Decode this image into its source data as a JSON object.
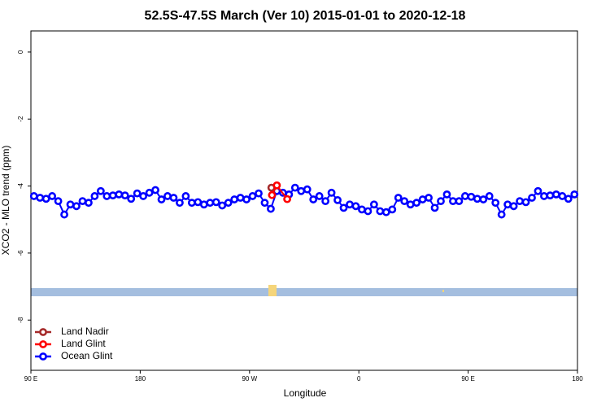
{
  "chart_data": {
    "type": "line",
    "title": "52.5S-47.5S March (Ver 10)   2015-01-01 to 2020-12-18",
    "xlabel": "Longitude",
    "ylabel": "XCO2 - MLO trend (ppm)",
    "xlim": [
      90,
      540
    ],
    "ylim": [
      -9.5,
      0.63
    ],
    "xticks": [
      {
        "value": 90,
        "label": "90 E"
      },
      180,
      {
        "value": 270,
        "label": "90 W"
      },
      {
        "value": 360,
        "label": "0"
      },
      {
        "value": 450,
        "label": "90 E"
      },
      {
        "value": 540,
        "label": "180"
      }
    ],
    "yticks": [
      0,
      -2,
      -4,
      -6,
      -8
    ],
    "legend": "bottom-left",
    "series": [
      {
        "name": "Land Nadir",
        "color": "#a52a2a",
        "x": [
          288
        ],
        "values": [
          -4.05
        ]
      },
      {
        "name": "Land Glint",
        "color": "#ff0000",
        "x": [
          288.5,
          292.5,
          301
        ],
        "values": [
          -4.27,
          -3.98,
          -4.39
        ]
      },
      {
        "name": "Ocean Glint",
        "color": "#0000ff",
        "x": [
          92.5,
          97.5,
          102.5,
          107.5,
          112.5,
          117.5,
          122.5,
          127.5,
          132.5,
          137.5,
          142.5,
          147.5,
          152.5,
          157.5,
          162.5,
          167.5,
          172.5,
          177.5,
          182.5,
          187.5,
          192.5,
          197.5,
          202.5,
          207.5,
          212.5,
          217.5,
          222.5,
          227.5,
          232.5,
          237.5,
          242.5,
          247.5,
          252.5,
          257.5,
          262.5,
          267.5,
          272.5,
          277.5,
          282.5,
          287.5,
          292.5,
          297.5,
          302.5,
          307.5,
          312.5,
          317.5,
          322.5,
          327.5,
          332.5,
          337.5,
          342.5,
          347.5,
          352.5,
          357.5,
          362.5,
          367.5,
          372.5,
          377.5,
          382.5,
          387.5,
          392.5,
          397.5,
          402.5,
          407.5,
          412.5,
          417.5,
          422.5,
          427.5,
          432.5,
          437.5,
          442.5,
          447.5,
          452.5,
          457.5,
          462.5,
          467.5,
          472.5,
          477.5,
          482.5,
          487.5,
          492.5,
          497.5,
          502.5,
          507.5,
          512.5,
          517.5,
          522.5,
          527.5,
          532.5,
          537.5
        ],
        "values": [
          -4.3,
          -4.35,
          -4.38,
          -4.3,
          -4.45,
          -4.85,
          -4.55,
          -4.6,
          -4.45,
          -4.5,
          -4.3,
          -4.15,
          -4.3,
          -4.28,
          -4.25,
          -4.28,
          -4.38,
          -4.22,
          -4.3,
          -4.2,
          -4.12,
          -4.4,
          -4.3,
          -4.35,
          -4.5,
          -4.3,
          -4.5,
          -4.48,
          -4.55,
          -4.5,
          -4.48,
          -4.58,
          -4.5,
          -4.4,
          -4.35,
          -4.4,
          -4.3,
          -4.22,
          -4.5,
          -4.68,
          -4.15,
          -4.2,
          -4.25,
          -4.05,
          -4.15,
          -4.1,
          -4.4,
          -4.3,
          -4.45,
          -4.2,
          -4.42,
          -4.65,
          -4.55,
          -4.6,
          -4.7,
          -4.75,
          -4.55,
          -4.75,
          -4.78,
          -4.7,
          -4.35,
          -4.45,
          -4.55,
          -4.5,
          -4.4,
          -4.35,
          -4.65,
          -4.45,
          -4.25,
          -4.45,
          -4.45,
          -4.3,
          -4.32,
          -4.38,
          -4.4,
          -4.3,
          -4.5,
          -4.85,
          -4.55,
          -4.6,
          -4.45,
          -4.48,
          -4.35,
          -4.15,
          -4.3,
          -4.28,
          -4.25,
          -4.3,
          -4.38,
          -4.25
        ]
      }
    ]
  }
}
